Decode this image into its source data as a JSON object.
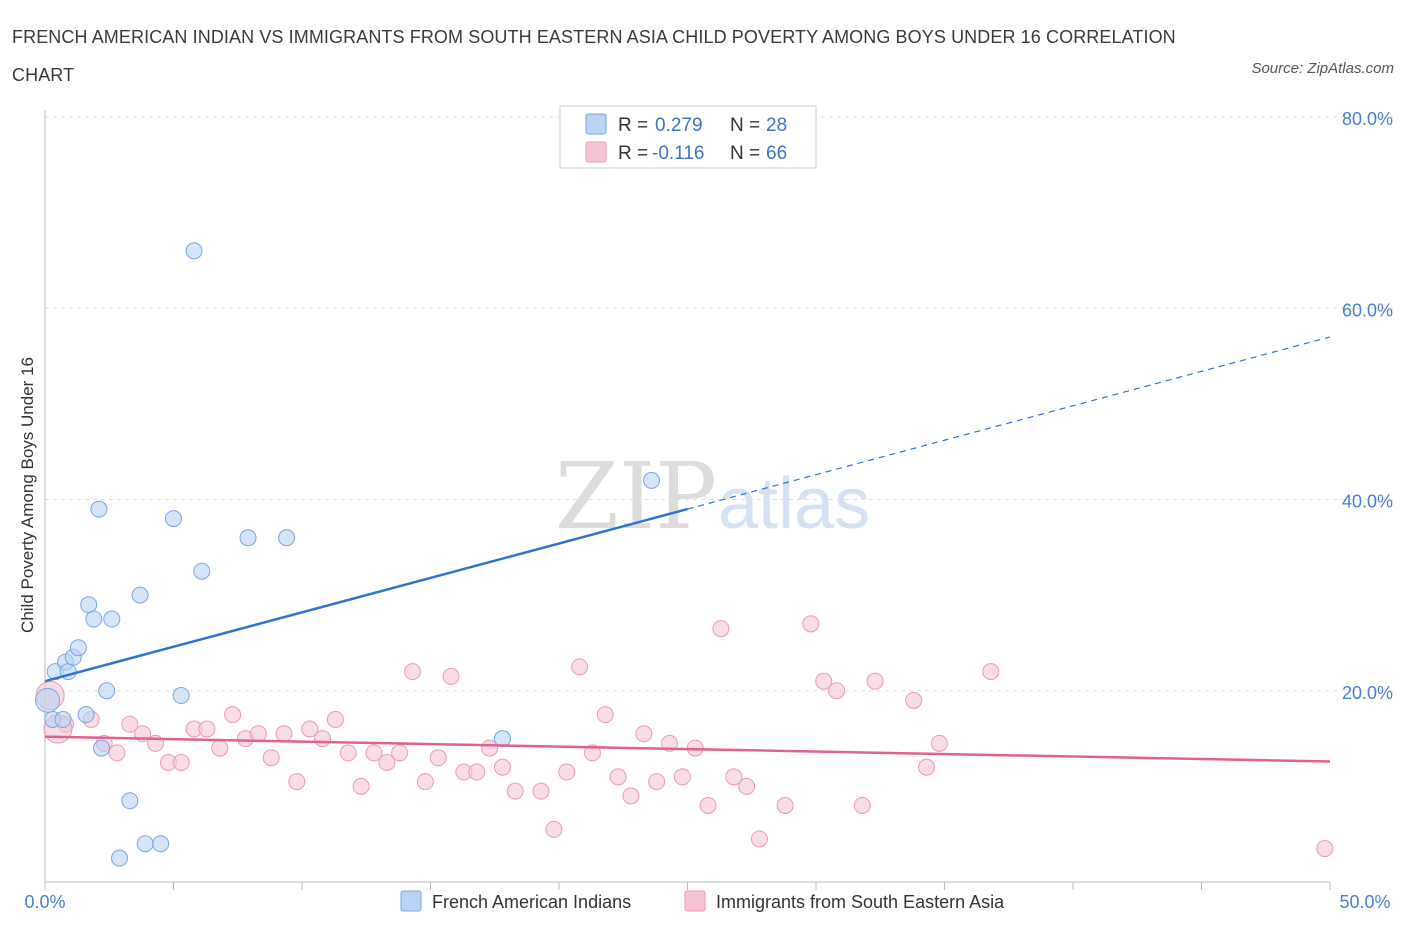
{
  "title": "FRENCH AMERICAN INDIAN VS IMMIGRANTS FROM SOUTH EASTERN ASIA CHILD POVERTY AMONG BOYS UNDER 16 CORRELATION CHART",
  "source": "Source: ZipAtlas.com",
  "watermark": {
    "zip": "ZIP",
    "atlas": "atlas"
  },
  "legend": {
    "rows": [
      {
        "r_label": "R = ",
        "r_value": "0.279",
        "n_label": "N = ",
        "n_value": "28"
      },
      {
        "r_label": "R = ",
        "r_value": "-0.116",
        "n_label": "N = ",
        "n_value": "66"
      }
    ]
  },
  "colors": {
    "blue_fill": "#b9d3f4",
    "blue_stroke": "#7aa6e0",
    "blue_line": "#2f74cc",
    "pink_fill": "#f7c4d3",
    "pink_stroke": "#ec9ab3",
    "pink_line": "#e0608e",
    "grid": "#dddddd",
    "tick_label": "#4a7fd0"
  },
  "chart_data": {
    "type": "scatter",
    "title": "FRENCH AMERICAN INDIAN VS IMMIGRANTS FROM SOUTH EASTERN ASIA CHILD POVERTY AMONG BOYS UNDER 16 CORRELATION CHART",
    "xlabel": "",
    "ylabel": "Child Poverty Among Boys Under 16",
    "xlim": [
      0,
      50
    ],
    "ylim": [
      0,
      80
    ],
    "x_tick_labels": [
      "0.0%",
      "50.0%"
    ],
    "y_ticks": [
      20,
      40,
      60,
      80
    ],
    "y_tick_labels": [
      "20.0%",
      "40.0%",
      "60.0%",
      "80.0%"
    ],
    "grid": true,
    "legend_position": "bottom",
    "series": [
      {
        "name": "French American Indians",
        "color": "blue",
        "r": 0.279,
        "n": 28,
        "trend": {
          "x0": 0,
          "y0": 21.0,
          "x1": 25,
          "y1": 39.0,
          "dash_to_x": 50,
          "dash_to_y": 57.0
        },
        "points": [
          [
            5.8,
            66.0
          ],
          [
            0.3,
            17.0
          ],
          [
            0.4,
            22.0
          ],
          [
            0.7,
            17.0
          ],
          [
            0.8,
            23.0
          ],
          [
            0.9,
            22.0
          ],
          [
            1.1,
            23.5
          ],
          [
            1.3,
            24.5
          ],
          [
            1.6,
            17.5
          ],
          [
            1.7,
            29.0
          ],
          [
            1.9,
            27.5
          ],
          [
            2.1,
            39.0
          ],
          [
            2.2,
            14.0
          ],
          [
            2.4,
            20.0
          ],
          [
            2.6,
            27.5
          ],
          [
            2.9,
            2.5
          ],
          [
            3.3,
            8.5
          ],
          [
            3.7,
            30.0
          ],
          [
            3.9,
            4.0
          ],
          [
            4.5,
            4.0
          ],
          [
            5.0,
            38.0
          ],
          [
            5.3,
            19.5
          ],
          [
            6.1,
            32.5
          ],
          [
            7.9,
            36.0
          ],
          [
            9.4,
            36.0
          ],
          [
            17.8,
            15.0
          ],
          [
            23.6,
            42.0
          ],
          [
            0.1,
            19.0
          ]
        ]
      },
      {
        "name": "Immigrants from South Eastern Asia",
        "color": "pink",
        "r": -0.116,
        "n": 66,
        "trend": {
          "x0": 0,
          "y0": 15.2,
          "x1": 50,
          "y1": 12.6
        },
        "points": [
          [
            0.2,
            19.5
          ],
          [
            0.8,
            16.5
          ],
          [
            1.8,
            17.0
          ],
          [
            2.3,
            14.5
          ],
          [
            2.8,
            13.5
          ],
          [
            3.3,
            16.5
          ],
          [
            3.8,
            15.5
          ],
          [
            4.3,
            14.5
          ],
          [
            4.8,
            12.5
          ],
          [
            5.3,
            12.5
          ],
          [
            5.8,
            16.0
          ],
          [
            6.3,
            16.0
          ],
          [
            6.8,
            14.0
          ],
          [
            7.3,
            17.5
          ],
          [
            7.8,
            15.0
          ],
          [
            8.3,
            15.5
          ],
          [
            8.8,
            13.0
          ],
          [
            9.3,
            15.5
          ],
          [
            9.8,
            10.5
          ],
          [
            10.3,
            16.0
          ],
          [
            10.8,
            15.0
          ],
          [
            11.3,
            17.0
          ],
          [
            11.8,
            13.5
          ],
          [
            12.3,
            10.0
          ],
          [
            12.8,
            13.5
          ],
          [
            13.3,
            12.5
          ],
          [
            13.8,
            13.5
          ],
          [
            14.3,
            22.0
          ],
          [
            14.8,
            10.5
          ],
          [
            15.3,
            13.0
          ],
          [
            15.8,
            21.5
          ],
          [
            16.3,
            11.5
          ],
          [
            16.8,
            11.5
          ],
          [
            17.3,
            14.0
          ],
          [
            17.8,
            12.0
          ],
          [
            18.3,
            9.5
          ],
          [
            19.3,
            9.5
          ],
          [
            19.8,
            5.5
          ],
          [
            20.3,
            11.5
          ],
          [
            20.8,
            22.5
          ],
          [
            21.3,
            13.5
          ],
          [
            21.8,
            17.5
          ],
          [
            22.3,
            11.0
          ],
          [
            22.8,
            9.0
          ],
          [
            23.3,
            15.5
          ],
          [
            23.8,
            10.5
          ],
          [
            24.3,
            14.5
          ],
          [
            24.8,
            11.0
          ],
          [
            25.3,
            14.0
          ],
          [
            25.8,
            8.0
          ],
          [
            26.3,
            26.5
          ],
          [
            26.8,
            11.0
          ],
          [
            27.3,
            10.0
          ],
          [
            27.8,
            4.5
          ],
          [
            28.8,
            8.0
          ],
          [
            29.8,
            27.0
          ],
          [
            30.3,
            21.0
          ],
          [
            30.8,
            20.0
          ],
          [
            31.8,
            8.0
          ],
          [
            32.3,
            21.0
          ],
          [
            33.8,
            19.0
          ],
          [
            34.3,
            12.0
          ],
          [
            34.8,
            14.5
          ],
          [
            36.8,
            22.0
          ],
          [
            49.8,
            3.5
          ],
          [
            0.5,
            16.0
          ]
        ]
      }
    ]
  },
  "bottom_legend": {
    "items": [
      {
        "label": "French American Indians"
      },
      {
        "label": "Immigrants from South Eastern Asia"
      }
    ]
  }
}
